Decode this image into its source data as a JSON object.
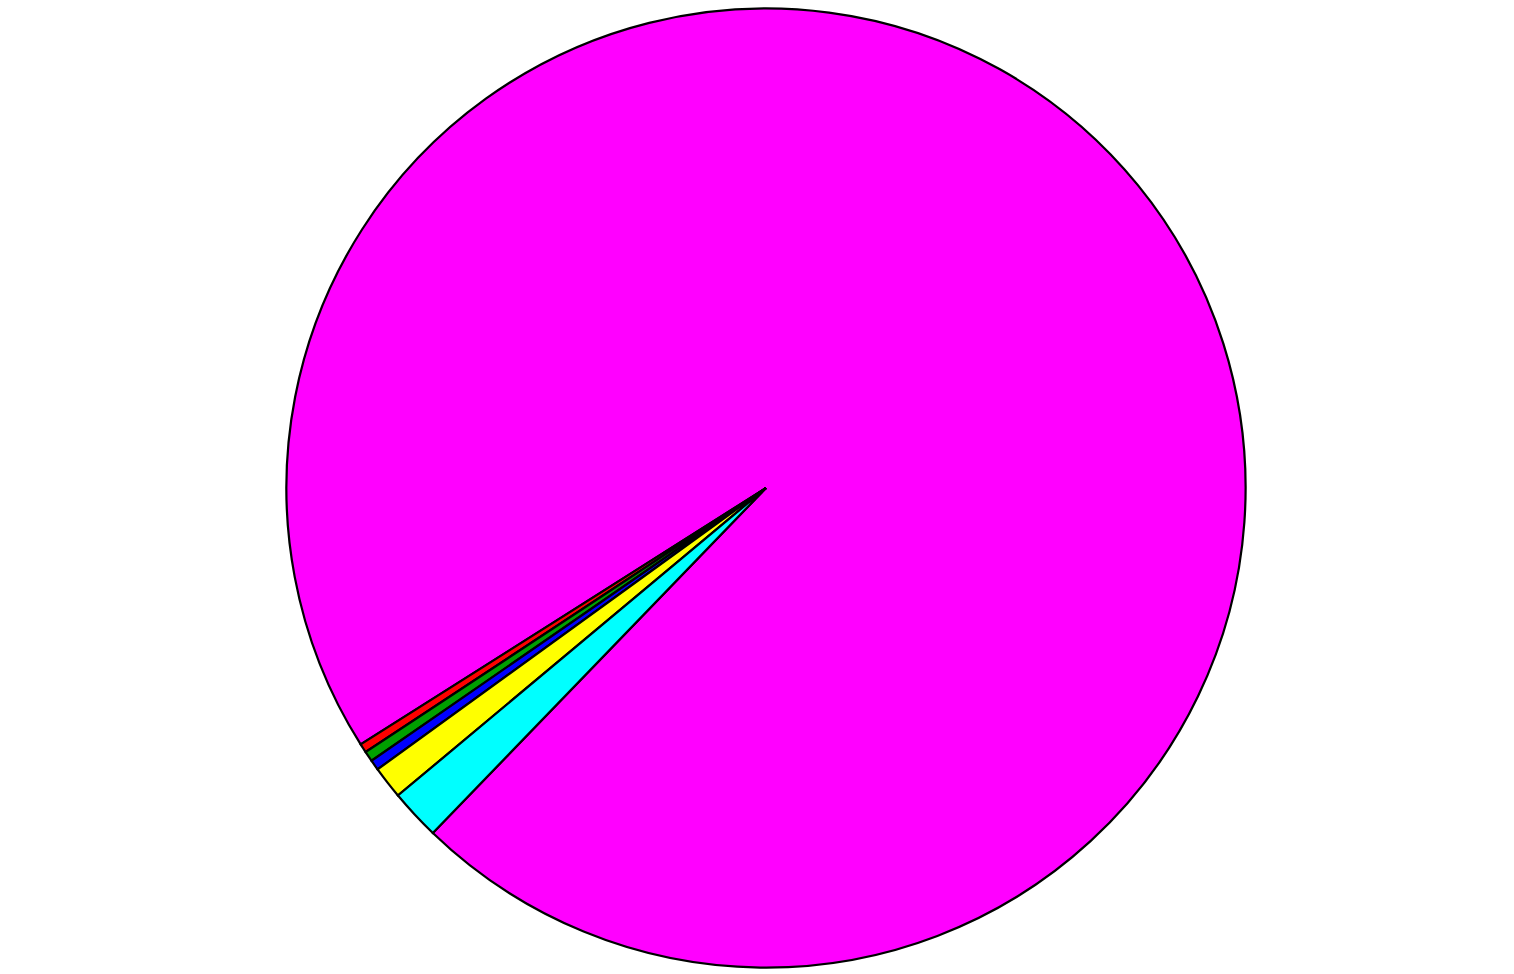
{
  "chart_data": {
    "type": "pie",
    "categories": [
      null,
      null,
      null,
      null,
      null,
      null
    ],
    "values": [
      96.2,
      0.3,
      0.35,
      0.35,
      1.1,
      1.7
    ],
    "colors": [
      "#ff00ff",
      "#ff0000",
      "#00a000",
      "#0000ff",
      "#ffff00",
      "#00ffff"
    ]
  }
}
